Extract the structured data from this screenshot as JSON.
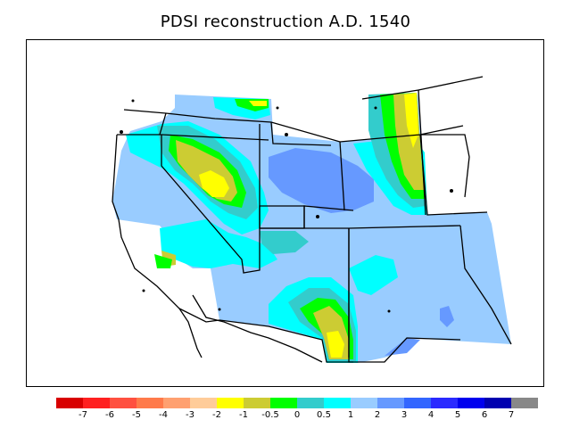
{
  "title": "PDSI reconstruction A.D. 1540",
  "legend": {
    "colors": [
      "#d80000",
      "#ff2020",
      "#ff5040",
      "#ff7a4a",
      "#ffa070",
      "#ffcc99",
      "#ffff00",
      "#cccc33",
      "#00ff00",
      "#33cccc",
      "#00ffff",
      "#99ccff",
      "#6699ff",
      "#3366ff",
      "#2a2aff",
      "#0000ee",
      "#0000b0",
      "#888888"
    ],
    "labels": [
      "-7",
      "-6",
      "-5",
      "-4",
      "-3",
      "-2",
      "-1",
      "-0.5",
      "0",
      "0.5",
      "1",
      "2",
      "3",
      "4",
      "5",
      "6",
      "7"
    ]
  },
  "map": {
    "region": "western-united-states",
    "palette": {
      "dry_center": "#ffff00",
      "olive": "#cccc33",
      "green": "#00ff00",
      "teal": "#33cccc",
      "cyan": "#00ffff",
      "light_blue": "#99ccff",
      "mid_blue": "#6699ff",
      "background": "#99ccff"
    }
  }
}
